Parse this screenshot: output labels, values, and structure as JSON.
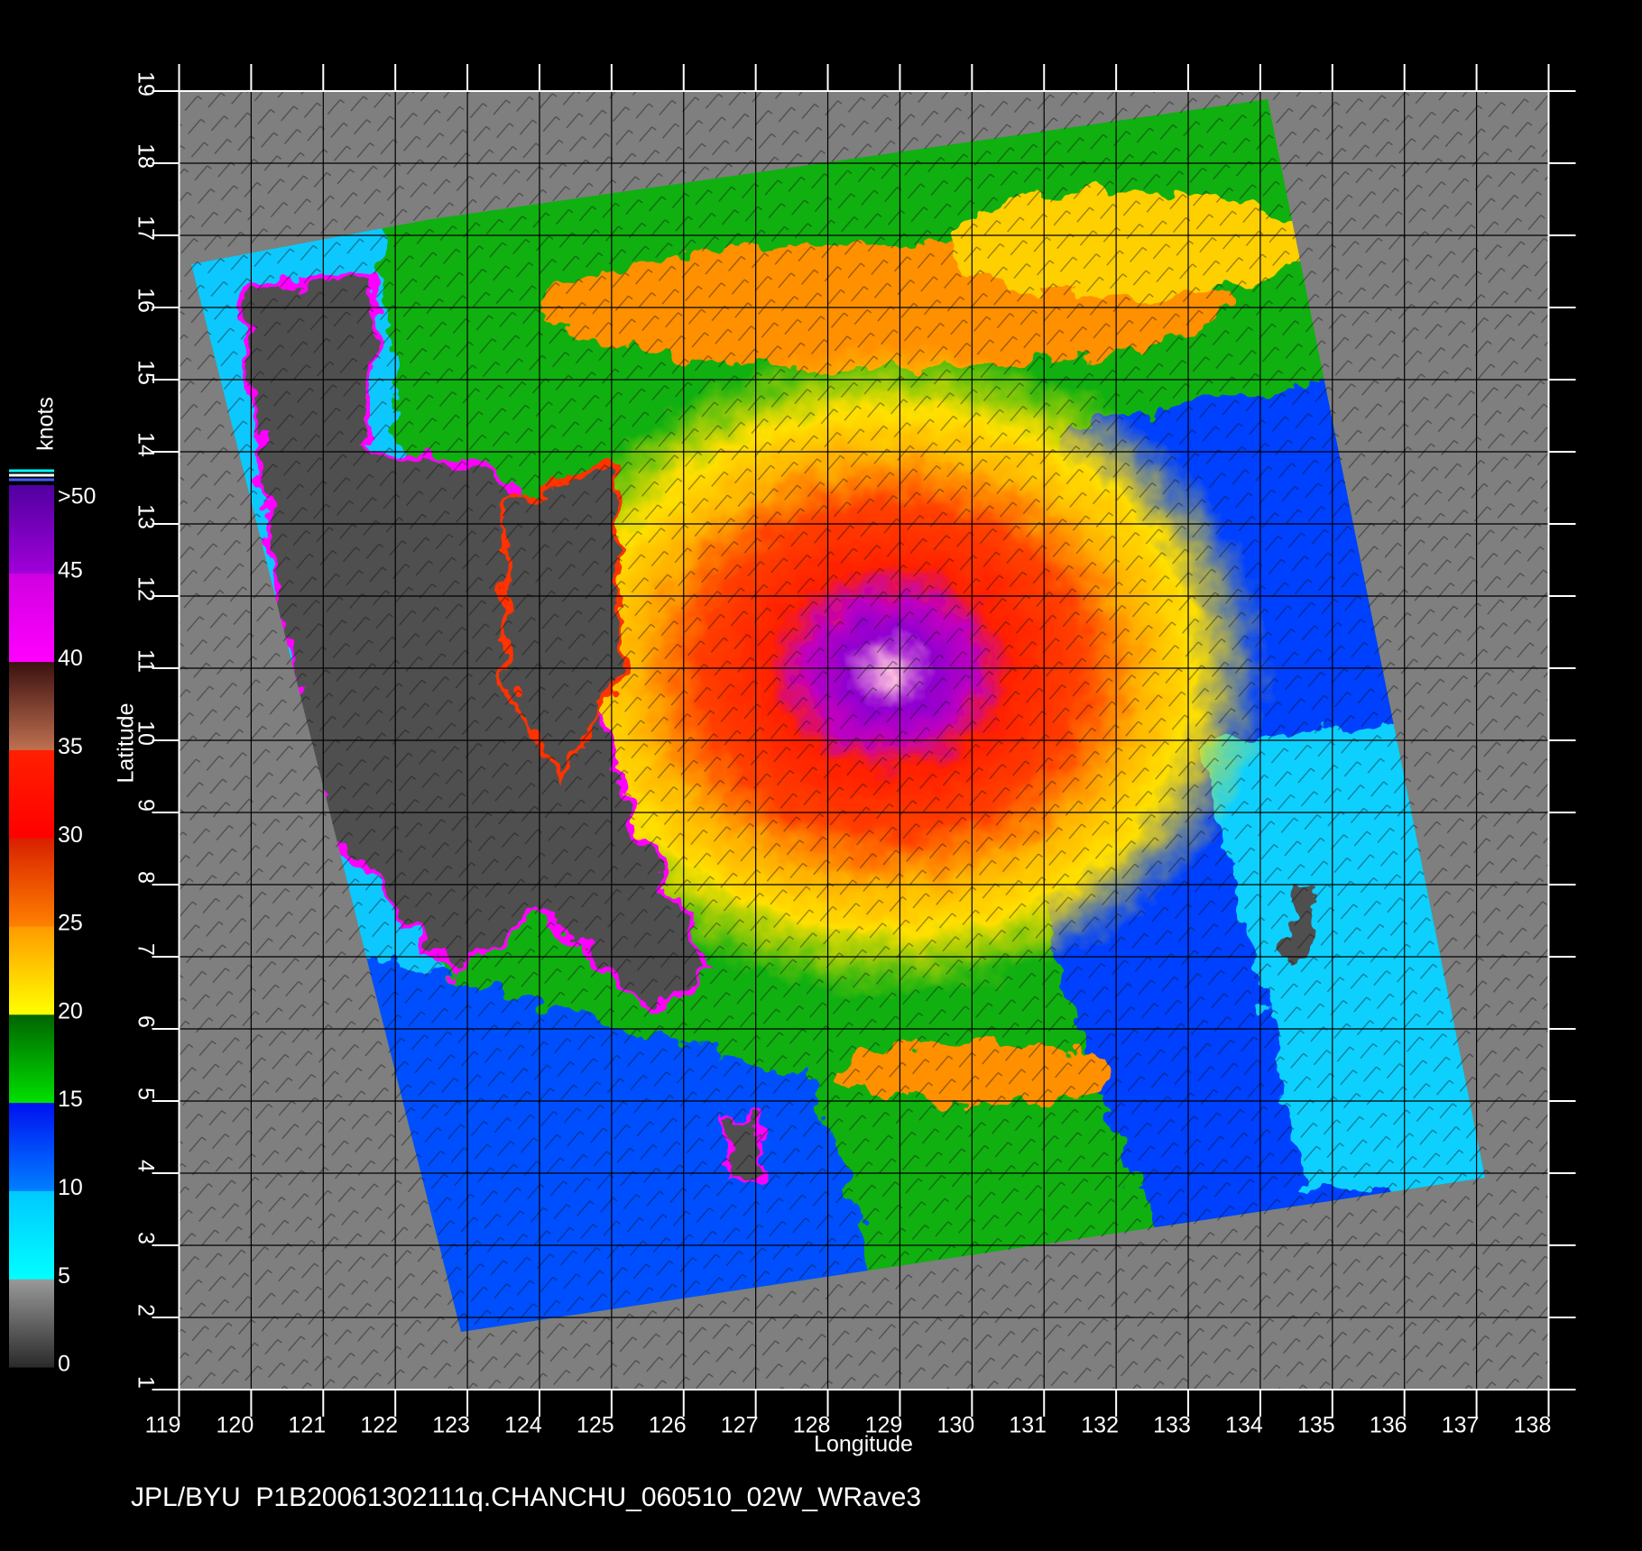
{
  "map": {
    "xlabel": "Longitude",
    "ylabel": "Latitude",
    "xticks": [
      119,
      120,
      121,
      122,
      123,
      124,
      125,
      126,
      127,
      128,
      129,
      130,
      131,
      132,
      133,
      134,
      135,
      136,
      137,
      138
    ],
    "yticks": [
      1,
      2,
      3,
      4,
      5,
      6,
      7,
      8,
      9,
      10,
      11,
      12,
      13,
      14,
      15,
      16,
      17,
      18,
      19
    ],
    "colorbar": {
      "unit": "knots",
      "labels": [
        "0",
        "5",
        "10",
        "15",
        "20",
        "25",
        "30",
        "35",
        "40",
        "45",
        ">50"
      ],
      "colors": [
        [
          "#2a2a2a",
          "#9a9a9a"
        ],
        [
          "#00ffff",
          "#00c8ff"
        ],
        [
          "#0080ff",
          "#0010f0"
        ],
        [
          "#00e000",
          "#006400"
        ],
        [
          "#ffff00",
          "#ff9a00"
        ],
        [
          "#ff8000",
          "#d82000"
        ],
        [
          "#ff0000",
          "#ff2000"
        ],
        [
          "#c07050",
          "#3a1010"
        ],
        [
          "#ff00ff",
          "#d000e0"
        ],
        [
          "#a000d8",
          "#5000a0"
        ]
      ]
    },
    "footer": "JPL/BYU  P1B20061302111q.CHANCHU_060510_02W_WRave3"
  }
}
